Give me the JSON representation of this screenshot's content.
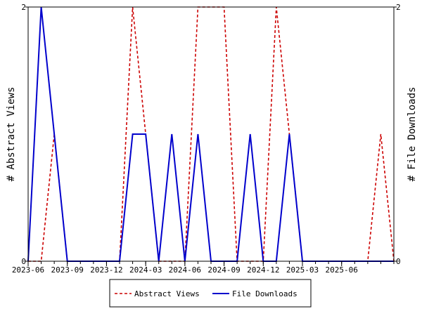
{
  "chart_data": {
    "type": "line",
    "x_format": "YYYY-MM",
    "x": [
      "2023-06",
      "2023-07",
      "2023-08",
      "2023-09",
      "2023-10",
      "2023-11",
      "2023-12",
      "2024-01",
      "2024-02",
      "2024-03",
      "2024-04",
      "2024-05",
      "2024-06",
      "2024-07",
      "2024-08",
      "2024-09",
      "2024-10",
      "2024-11",
      "2024-12",
      "2025-01",
      "2025-02",
      "2025-03",
      "2025-04",
      "2025-05",
      "2025-06",
      "2025-07",
      "2025-08",
      "2025-09",
      "2025-10"
    ],
    "x_tick_labels": [
      "2023-06",
      "2023-09",
      "2023-12",
      "2024-03",
      "2024-06",
      "2024-09",
      "2024-12",
      "2025-03",
      "2025-06"
    ],
    "ylabel_left": "# Abstract Views",
    "ylabel_right": "# File Downloads",
    "ylim_left": [
      0,
      2
    ],
    "ylim_right": [
      0,
      2
    ],
    "y_ticks_left": [
      "0",
      "2"
    ],
    "y_ticks_right": [
      "0",
      "2"
    ],
    "grid": false,
    "legend_position": "bottom-center",
    "series": [
      {
        "name": "Abstract Views",
        "axis": "left",
        "color": "#cc0000",
        "style": "dashed",
        "values": [
          0,
          0,
          1,
          0,
          0,
          0,
          0,
          0,
          2,
          1,
          0,
          0,
          0,
          2,
          2,
          2,
          0,
          0,
          0,
          2,
          1,
          0,
          0,
          0,
          0,
          0,
          0,
          1,
          0
        ]
      },
      {
        "name": "File Downloads",
        "axis": "right",
        "color": "#0000cc",
        "style": "solid",
        "values": [
          0,
          2,
          1,
          0,
          0,
          0,
          0,
          0,
          1,
          1,
          0,
          1,
          0,
          1,
          0,
          0,
          0,
          1,
          0,
          0,
          1,
          0,
          0,
          0,
          0,
          0,
          0,
          0,
          0
        ]
      }
    ]
  }
}
